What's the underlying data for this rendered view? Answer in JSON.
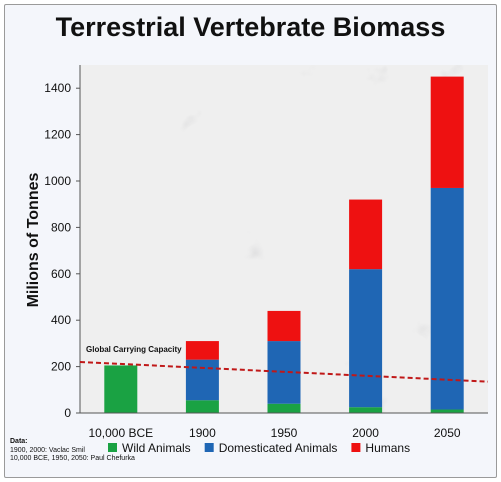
{
  "chart_data": {
    "type": "bar",
    "stacked": true,
    "title": "Terrestrial Vertebrate Biomass",
    "xlabel": "",
    "ylabel": "Milions of Tonnes",
    "ylim": [
      0,
      1500
    ],
    "yticks": [
      0,
      200,
      400,
      600,
      800,
      1000,
      1200,
      1400
    ],
    "categories": [
      "10,000 BCE",
      "1900",
      "1950",
      "2000",
      "2050"
    ],
    "series": [
      {
        "name": "Wild Animals",
        "color": "#1aa243",
        "values": [
          205,
          55,
          40,
          25,
          15
        ]
      },
      {
        "name": "Domesticated Animals",
        "color": "#1f66b4",
        "values": [
          0,
          175,
          270,
          595,
          955
        ]
      },
      {
        "name": "Humans",
        "color": "#ee1111",
        "values": [
          0,
          80,
          130,
          300,
          480
        ]
      }
    ],
    "legend_position": "bottom",
    "annotations": [
      {
        "text": "Global Carrying Capacity",
        "type": "dashed-line",
        "color": "#c01818",
        "start_value": 220,
        "end_value": 135
      }
    ],
    "grid": false
  },
  "sources": {
    "heading": "Data:",
    "lines": [
      "1900, 2000: Vaclac Smil",
      "10,000 BCE, 1950, 2050: Paul Chefurka"
    ]
  }
}
